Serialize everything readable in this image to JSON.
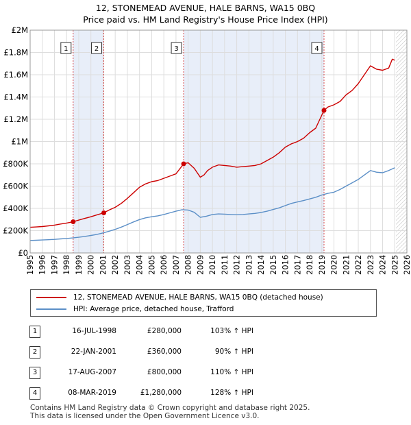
{
  "chart_data": {
    "type": "line",
    "title": "12, STONEMEAD AVENUE, HALE BARNS, WA15 0BQ",
    "subtitle": "Price paid vs. HM Land Registry's House Price Index (HPI)",
    "xlabel": "",
    "ylabel": "",
    "xlim": [
      1995,
      2026
    ],
    "ylim": [
      0,
      2000000
    ],
    "x_ticks": [
      "1995",
      "1996",
      "1997",
      "1998",
      "1999",
      "2000",
      "2001",
      "2002",
      "2003",
      "2004",
      "2005",
      "2006",
      "2007",
      "2008",
      "2009",
      "2010",
      "2011",
      "2012",
      "2013",
      "2014",
      "2015",
      "2016",
      "2017",
      "2018",
      "2019",
      "2020",
      "2021",
      "2022",
      "2023",
      "2024",
      "2025",
      "2026"
    ],
    "y_ticks": [
      {
        "value": 0,
        "label": "£0"
      },
      {
        "value": 200000,
        "label": "£200K"
      },
      {
        "value": 400000,
        "label": "£400K"
      },
      {
        "value": 600000,
        "label": "£600K"
      },
      {
        "value": 800000,
        "label": "£800K"
      },
      {
        "value": 1000000,
        "label": "£1M"
      },
      {
        "value": 1200000,
        "label": "£1.2M"
      },
      {
        "value": 1400000,
        "label": "£1.4M"
      },
      {
        "value": 1600000,
        "label": "£1.6M"
      },
      {
        "value": 1800000,
        "label": "£1.8M"
      },
      {
        "value": 2000000,
        "label": "£2M"
      }
    ],
    "grid": true,
    "series": [
      {
        "name": "12, STONEMEAD AVENUE, HALE BARNS, WA15 0BQ (detached house)",
        "color": "#cc0000",
        "x": [
          1995.0,
          1995.5,
          1996.0,
          1996.5,
          1997.0,
          1997.5,
          1998.0,
          1998.54,
          1999.0,
          1999.5,
          2000.0,
          2000.5,
          2001.06,
          2001.5,
          2002.0,
          2002.5,
          2003.0,
          2003.5,
          2004.0,
          2004.5,
          2005.0,
          2005.5,
          2006.0,
          2006.5,
          2007.0,
          2007.63,
          2008.0,
          2008.5,
          2009.0,
          2009.3,
          2009.6,
          2010.0,
          2010.5,
          2011.0,
          2011.5,
          2012.0,
          2012.5,
          2013.0,
          2013.5,
          2014.0,
          2014.5,
          2015.0,
          2015.5,
          2016.0,
          2016.5,
          2017.0,
          2017.5,
          2018.0,
          2018.5,
          2019.18,
          2019.5,
          2020.0,
          2020.5,
          2021.0,
          2021.5,
          2022.0,
          2022.5,
          2023.0,
          2023.5,
          2024.0,
          2024.5,
          2024.8,
          2025.0
        ],
        "values": [
          230000,
          233000,
          237000,
          243000,
          250000,
          260000,
          268000,
          280000,
          295000,
          310000,
          325000,
          342000,
          360000,
          385000,
          410000,
          445000,
          490000,
          540000,
          590000,
          620000,
          640000,
          650000,
          670000,
          690000,
          710000,
          800000,
          810000,
          760000,
          680000,
          700000,
          740000,
          770000,
          790000,
          785000,
          780000,
          770000,
          775000,
          780000,
          785000,
          800000,
          830000,
          860000,
          900000,
          950000,
          980000,
          1000000,
          1030000,
          1080000,
          1120000,
          1280000,
          1310000,
          1330000,
          1360000,
          1420000,
          1460000,
          1520000,
          1600000,
          1680000,
          1650000,
          1640000,
          1660000,
          1740000,
          1730000
        ]
      },
      {
        "name": "HPI: Average price, detached house, Trafford",
        "color": "#5b8fc7",
        "x": [
          1995.0,
          1995.5,
          1996.0,
          1996.5,
          1997.0,
          1997.5,
          1998.0,
          1998.5,
          1999.0,
          1999.5,
          2000.0,
          2000.5,
          2001.0,
          2001.5,
          2002.0,
          2002.5,
          2003.0,
          2003.5,
          2004.0,
          2004.5,
          2005.0,
          2005.5,
          2006.0,
          2006.5,
          2007.0,
          2007.5,
          2008.0,
          2008.5,
          2009.0,
          2009.5,
          2010.0,
          2010.5,
          2011.0,
          2011.5,
          2012.0,
          2012.5,
          2013.0,
          2013.5,
          2014.0,
          2014.5,
          2015.0,
          2015.5,
          2016.0,
          2016.5,
          2017.0,
          2017.5,
          2018.0,
          2018.5,
          2019.0,
          2019.5,
          2020.0,
          2020.5,
          2021.0,
          2021.5,
          2022.0,
          2022.5,
          2023.0,
          2023.5,
          2024.0,
          2024.5,
          2025.0
        ],
        "values": [
          112000,
          114000,
          116000,
          119000,
          122000,
          126000,
          130000,
          135000,
          141000,
          148000,
          157000,
          167000,
          180000,
          195000,
          212000,
          232000,
          255000,
          278000,
          300000,
          315000,
          325000,
          333000,
          345000,
          360000,
          375000,
          388000,
          385000,
          365000,
          320000,
          330000,
          345000,
          350000,
          348000,
          345000,
          343000,
          345000,
          350000,
          355000,
          363000,
          375000,
          390000,
          405000,
          425000,
          445000,
          458000,
          470000,
          485000,
          500000,
          520000,
          535000,
          545000,
          570000,
          600000,
          630000,
          660000,
          700000,
          740000,
          725000,
          720000,
          740000,
          765000
        ]
      }
    ],
    "annotations": [
      {
        "label": "1",
        "x": 1998.54,
        "value": 280000
      },
      {
        "label": "2",
        "x": 2001.06,
        "value": 360000
      },
      {
        "label": "3",
        "x": 2007.63,
        "value": 800000
      },
      {
        "label": "4",
        "x": 2019.18,
        "value": 1280000
      }
    ],
    "shaded_ranges": [
      [
        1998.54,
        2001.06
      ],
      [
        2007.63,
        2019.18
      ]
    ]
  },
  "legend": {
    "property_label": "12, STONEMEAD AVENUE, HALE BARNS, WA15 0BQ (detached house)",
    "hpi_label": "HPI: Average price, detached house, Trafford"
  },
  "transactions": [
    {
      "num": "1",
      "date": "16-JUL-1998",
      "price": "£280,000",
      "hpi": "103% ↑ HPI"
    },
    {
      "num": "2",
      "date": "22-JAN-2001",
      "price": "£360,000",
      "hpi": "90% ↑ HPI"
    },
    {
      "num": "3",
      "date": "17-AUG-2007",
      "price": "£800,000",
      "hpi": "110% ↑ HPI"
    },
    {
      "num": "4",
      "date": "08-MAR-2019",
      "price": "£1,280,000",
      "hpi": "128% ↑ HPI"
    }
  ],
  "footer": {
    "line1": "Contains HM Land Registry data © Crown copyright and database right 2025.",
    "line2": "This data is licensed under the Open Government Licence v3.0."
  }
}
